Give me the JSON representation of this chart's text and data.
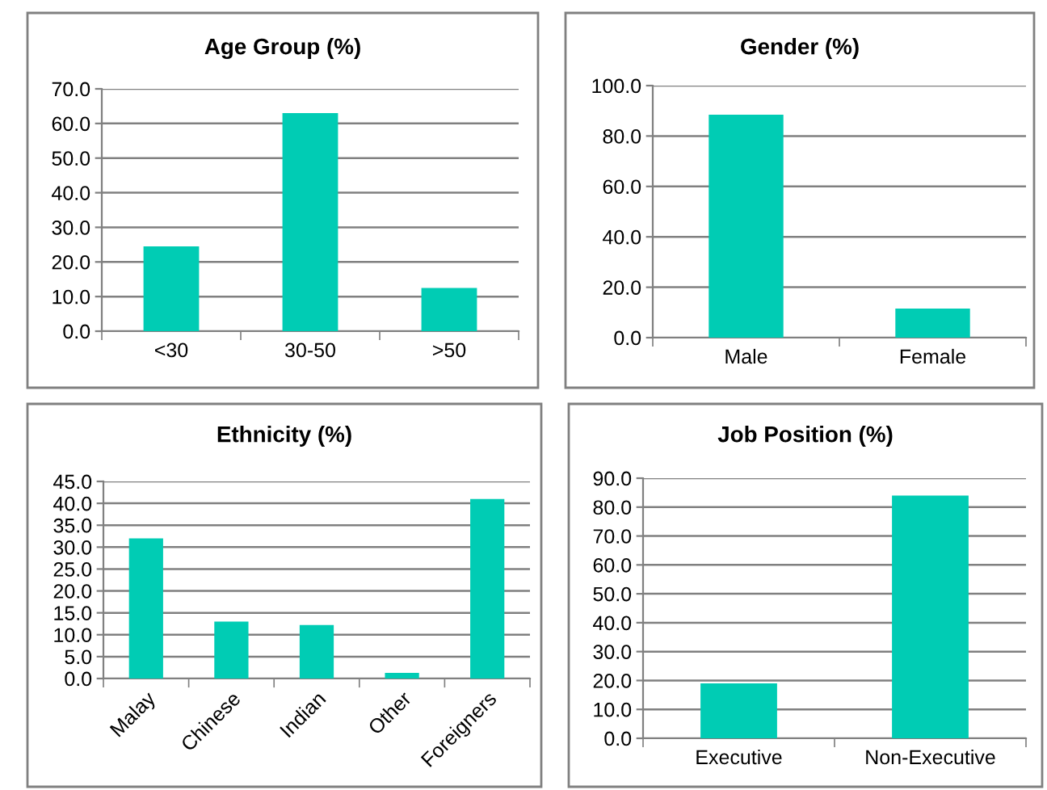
{
  "chart_data": [
    {
      "type": "bar",
      "title": "Age Group (%)",
      "categories": [
        "<30",
        "30-50",
        ">50"
      ],
      "values": [
        24.5,
        63,
        12.5
      ],
      "color": "#00ccb4",
      "ylim": [
        0,
        70
      ],
      "yticks": [
        {
          "value": 0,
          "label": "0.0"
        },
        {
          "value": 10,
          "label": "10.0"
        },
        {
          "value": 20,
          "label": "20.0"
        },
        {
          "value": 30,
          "label": "30.0"
        },
        {
          "value": 40,
          "label": "40.0"
        },
        {
          "value": 50,
          "label": "50.0"
        },
        {
          "value": 60,
          "label": "60.0"
        },
        {
          "value": 70,
          "label": "70.0"
        }
      ],
      "grid": "y",
      "legend": false
    },
    {
      "type": "bar",
      "title": "Gender (%)",
      "categories": [
        "Male",
        "Female"
      ],
      "values": [
        88.5,
        11.5
      ],
      "color": "#00ccb4",
      "ylim": [
        0,
        100
      ],
      "yticks": [
        {
          "value": 0,
          "label": "0.0"
        },
        {
          "value": 20,
          "label": "20.0"
        },
        {
          "value": 40,
          "label": "40.0"
        },
        {
          "value": 60,
          "label": "60.0"
        },
        {
          "value": 80,
          "label": "80.0"
        },
        {
          "value": 100,
          "label": "100.0"
        }
      ],
      "grid": "y",
      "legend": false
    },
    {
      "type": "bar",
      "title": "Ethnicity (%)",
      "categories": [
        "Malay",
        "Chinese",
        "Indian",
        "Other",
        "Foreigners"
      ],
      "values": [
        32,
        13,
        12.2,
        1.3,
        41
      ],
      "color": "#00ccb4",
      "ylim": [
        0,
        45
      ],
      "yticks": [
        {
          "value": 0,
          "label": "0.0"
        },
        {
          "value": 5,
          "label": "5.0"
        },
        {
          "value": 10,
          "label": "10.0"
        },
        {
          "value": 15,
          "label": "15.0"
        },
        {
          "value": 20,
          "label": "20.0"
        },
        {
          "value": 25,
          "label": "25.0"
        },
        {
          "value": 30,
          "label": "30.0"
        },
        {
          "value": 35,
          "label": "35.0"
        },
        {
          "value": 40,
          "label": "40.0"
        },
        {
          "value": 45,
          "label": "45.0"
        }
      ],
      "grid": "y",
      "legend": false
    },
    {
      "type": "bar",
      "title": "Job Position (%)",
      "categories": [
        "Executive",
        "Non-Executive"
      ],
      "values": [
        19,
        84
      ],
      "color": "#00ccb4",
      "ylim": [
        0,
        90
      ],
      "yticks": [
        {
          "value": 0,
          "label": "0.0"
        },
        {
          "value": 10,
          "label": "10.0"
        },
        {
          "value": 20,
          "label": "20.0"
        },
        {
          "value": 30,
          "label": "30.0"
        },
        {
          "value": 40,
          "label": "40.0"
        },
        {
          "value": 50,
          "label": "50.0"
        },
        {
          "value": 60,
          "label": "60.0"
        },
        {
          "value": 70,
          "label": "70.0"
        },
        {
          "value": 80,
          "label": "80.0"
        },
        {
          "value": 90,
          "label": "90.0"
        }
      ],
      "grid": "y",
      "legend": false
    }
  ]
}
